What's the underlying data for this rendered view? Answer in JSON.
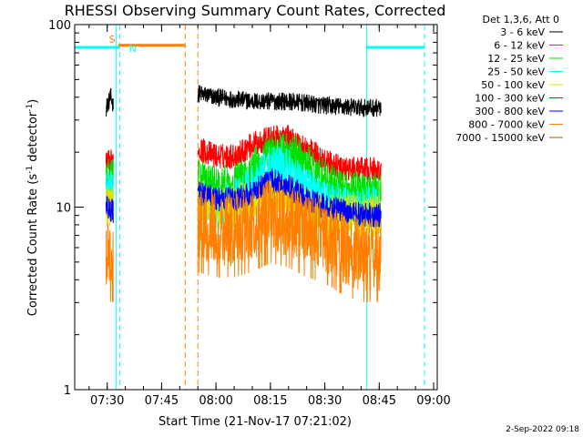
{
  "chart_data": {
    "type": "line",
    "title": "RHESSI Observing Summary Count Rates, Corrected",
    "xlabel": "Start Time (21-Nov-17 07:21:02)",
    "ylabel": "Corrected Count Rate (s",
    "ylabel_sup1": "-1",
    "ylabel_mid": " detector",
    "ylabel_sup2": "-1",
    "ylabel_end": ")",
    "yscale": "log",
    "ylim": [
      1,
      100
    ],
    "y_ticks": [
      {
        "value": 1,
        "label": "1"
      },
      {
        "value": 10,
        "label": "10"
      },
      {
        "value": 100,
        "label": "100"
      }
    ],
    "xlim": [
      "07:21:02",
      "09:01:00"
    ],
    "x_ticks": [
      {
        "time": "07:30",
        "label": "07:30"
      },
      {
        "time": "07:45",
        "label": "07:45"
      },
      {
        "time": "08:00",
        "label": "08:00"
      },
      {
        "time": "08:15",
        "label": "08:15"
      },
      {
        "time": "08:30",
        "label": "08:30"
      },
      {
        "time": "08:45",
        "label": "08:45"
      },
      {
        "time": "09:00",
        "label": "09:00"
      }
    ],
    "legend": {
      "placement": "right",
      "header": "Det 1,3,6, Att 0",
      "entries": [
        {
          "label": "3 - 6 keV",
          "color": "#000000"
        },
        {
          "label": "6 - 12 keV",
          "color": "#ff00ff"
        },
        {
          "label": "12 - 25 keV",
          "color": "#00e000"
        },
        {
          "label": "25 - 50 keV",
          "color": "#00ffff"
        },
        {
          "label": "50 - 100 keV",
          "color": "#e0e000"
        },
        {
          "label": "100 - 300 keV",
          "color": "#ff0000"
        },
        {
          "label": "300 - 800 keV",
          "color": "#0000ff"
        },
        {
          "label": "800 - 7000 keV",
          "color": "#ff8000"
        },
        {
          "label": "7000 - 15000 keV",
          "color": "#a06000"
        }
      ]
    },
    "series": [
      {
        "color": "#000000",
        "noise": 0.05,
        "segments": [
          {
            "x": [
              "07:29:40",
              "07:30:30",
              "07:31:00",
              "07:31:40"
            ],
            "y": [
              35,
              38,
              40,
              36
            ]
          },
          {
            "x": [
              "07:55:00",
              "08:00:00",
              "08:10:00",
              "08:20:00",
              "08:30:00",
              "08:40:00",
              "08:45:30"
            ],
            "y": [
              42,
              40,
              38,
              38,
              36,
              35,
              35
            ]
          }
        ]
      },
      {
        "color": "#ff0000",
        "noise": 0.07,
        "segments": [
          {
            "x": [
              "07:29:40",
              "07:31:40"
            ],
            "y": [
              17,
              18
            ]
          },
          {
            "x": [
              "07:55:00",
              "08:00:00",
              "08:05:00",
              "08:10:00",
              "08:15:00",
              "08:20:00",
              "08:25:00",
              "08:30:00",
              "08:35:00",
              "08:40:00",
              "08:45:30"
            ],
            "y": [
              21,
              19,
              19,
              22,
              24,
              24,
              21,
              18,
              16,
              16,
              16
            ]
          }
        ]
      },
      {
        "color": "#00e000",
        "noise": 0.12,
        "segments": [
          {
            "x": [
              "07:29:40",
              "07:31:40"
            ],
            "y": [
              14,
              14
            ]
          },
          {
            "x": [
              "07:55:00",
              "08:00:00",
              "08:05:00",
              "08:10:00",
              "08:15:00",
              "08:20:00",
              "08:25:00",
              "08:30:00",
              "08:35:00",
              "08:40:00",
              "08:45:30"
            ],
            "y": [
              14,
              13,
              13,
              16,
              19,
              20,
              17,
              14,
              12,
              12,
              12
            ]
          }
        ]
      },
      {
        "color": "#00ffff",
        "noise": 0.12,
        "segments": [
          {
            "x": [
              "07:29:40",
              "07:31:40"
            ],
            "y": [
              12,
              12
            ]
          },
          {
            "x": [
              "07:55:00",
              "08:00:00",
              "08:05:00",
              "08:10:00",
              "08:15:00",
              "08:20:00",
              "08:25:00",
              "08:30:00",
              "08:35:00",
              "08:40:00",
              "08:45:30"
            ],
            "y": [
              11,
              10,
              11,
              13,
              17,
              16,
              13,
              11,
              10,
              10,
              10
            ]
          }
        ]
      },
      {
        "color": "#e0e000",
        "noise": 0.12,
        "segments": [
          {
            "x": [
              "07:29:40",
              "07:31:40"
            ],
            "y": [
              10,
              10
            ]
          },
          {
            "x": [
              "07:55:00",
              "08:00:00",
              "08:05:00",
              "08:10:00",
              "08:15:00",
              "08:20:00",
              "08:25:00",
              "08:30:00",
              "08:35:00",
              "08:40:00",
              "08:45:30"
            ],
            "y": [
              11,
              10,
              10,
              11,
              12,
              11,
              10,
              9,
              9,
              9,
              9
            ]
          }
        ]
      },
      {
        "color": "#0000ff",
        "noise": 0.07,
        "segments": [
          {
            "x": [
              "07:29:40",
              "07:31:40"
            ],
            "y": [
              10,
              9.5
            ]
          },
          {
            "x": [
              "07:55:00",
              "08:00:00",
              "08:05:00",
              "08:10:00",
              "08:15:00",
              "08:20:00",
              "08:25:00",
              "08:30:00",
              "08:35:00",
              "08:40:00",
              "08:45:30"
            ],
            "y": [
              12,
              11,
              11,
              12,
              14,
              13,
              11,
              10,
              9.5,
              9,
              9
            ]
          }
        ]
      },
      {
        "color": "#ff8000",
        "noise": 0.2,
        "segments": [
          {
            "x": [
              "07:29:40",
              "07:31:40"
            ],
            "y": [
              5.5,
              5.5
            ]
          },
          {
            "x": [
              "07:55:00",
              "08:00:00",
              "08:05:00",
              "08:10:00",
              "08:15:00",
              "08:20:00",
              "08:25:00",
              "08:30:00",
              "08:35:00",
              "08:40:00",
              "08:45:30"
            ],
            "y": [
              8,
              7.5,
              7.5,
              8,
              9,
              8.5,
              7.5,
              7,
              6,
              5.5,
              5.5
            ]
          }
        ]
      }
    ],
    "state_bars": [
      {
        "label": "S",
        "color": "#ff8000",
        "x": [
          "07:33:00",
          "07:51:30"
        ],
        "y": 77
      },
      {
        "label": "N",
        "color": "#00ffff",
        "x": [
          "07:21:02",
          "07:33:30"
        ],
        "y": 75
      },
      {
        "label": "",
        "color": "#00ffff",
        "x": [
          "08:41:30",
          "08:57:30"
        ],
        "y": 75
      }
    ],
    "vertical_lines": [
      {
        "x": "07:21:02",
        "color": "#00ffff",
        "dashed": false
      },
      {
        "x": "07:32:30",
        "color": "#00ffff",
        "dashed": false
      },
      {
        "x": "07:33:30",
        "color": "#00ffff",
        "dashed": true
      },
      {
        "x": "07:51:30",
        "color": "#ff8000",
        "dashed": true
      },
      {
        "x": "07:55:00",
        "color": "#ff8000",
        "dashed": true
      },
      {
        "x": "08:41:30",
        "color": "#00ffff",
        "dashed": false
      },
      {
        "x": "08:57:30",
        "color": "#00ffff",
        "dashed": true
      }
    ]
  },
  "footer": {
    "date": "2-Sep-2022 09:18"
  }
}
